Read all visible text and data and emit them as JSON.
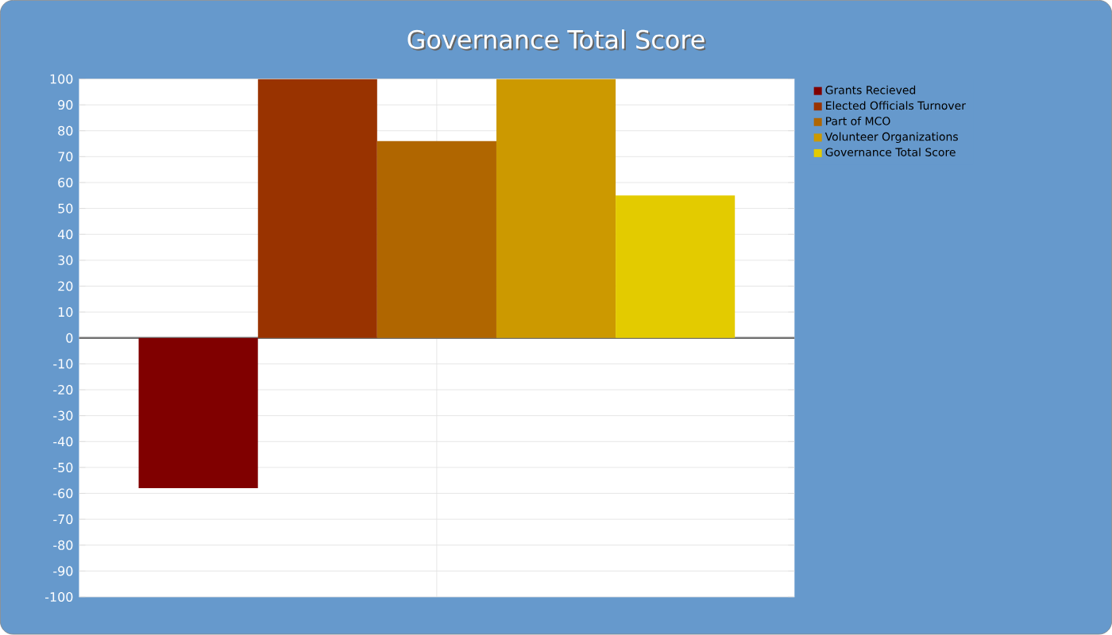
{
  "chart_data": {
    "type": "bar",
    "title": "Governance Total Score",
    "categories": [
      null
    ],
    "series": [
      {
        "name": "Grants Recieved",
        "color": "#800000",
        "values": [
          -58
        ]
      },
      {
        "name": "Elected Officials Turnover",
        "color": "#993300",
        "values": [
          100
        ]
      },
      {
        "name": "Part of MCO",
        "color": "#b06600",
        "values": [
          76
        ]
      },
      {
        "name": "Volunteer Organizations",
        "color": "#cc9900",
        "values": [
          100
        ]
      },
      {
        "name": "Governance Total Score",
        "color": "#e3cb00",
        "values": [
          55
        ]
      }
    ],
    "ylim": [
      -100,
      100
    ],
    "yticks": [
      -100,
      -90,
      -80,
      -70,
      -60,
      -50,
      -40,
      -30,
      -20,
      -10,
      0,
      10,
      20,
      30,
      40,
      50,
      60,
      70,
      80,
      90,
      100
    ],
    "grid": true,
    "legend": "top right"
  }
}
